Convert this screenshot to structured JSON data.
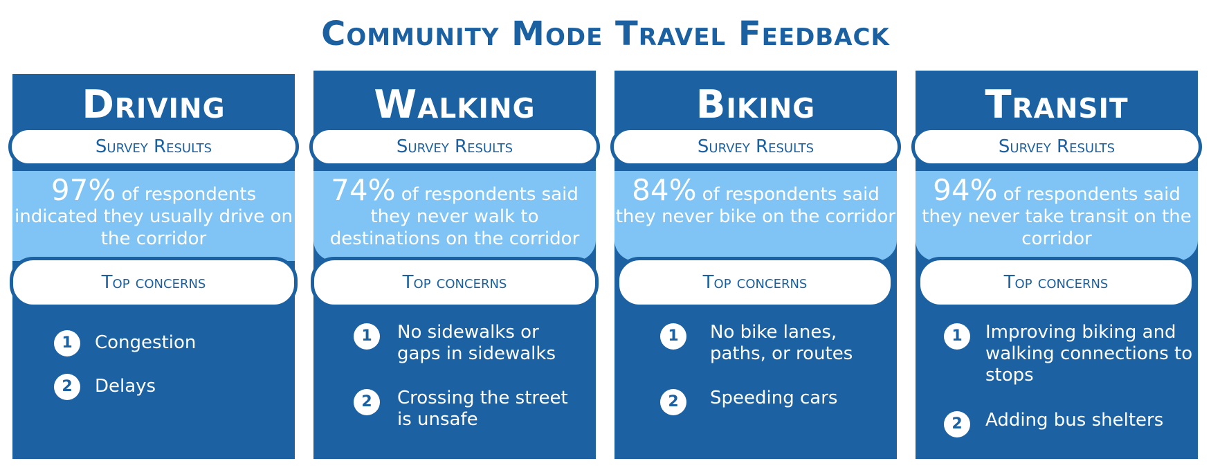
{
  "title": "Community Mode Travel Feedback",
  "panels": [
    {
      "title": "Driving",
      "survey_label": "Survey Results",
      "stat_pct": "97%",
      "stat_text": "of respondents indicated they usually drive on the corridor",
      "concerns_label": "Top concerns",
      "concerns": [
        {
          "num": "1",
          "text": "Congestion"
        },
        {
          "num": "2",
          "text": "Delays"
        }
      ]
    },
    {
      "title": "Walking",
      "survey_label": "Survey Results",
      "stat_pct": "74%",
      "stat_text": "of respondents said they never walk to destinations on the corridor",
      "concerns_label": "Top concerns",
      "concerns": [
        {
          "num": "1",
          "text": "No sidewalks or gaps in sidewalks"
        },
        {
          "num": "2",
          "text": "Crossing the street is unsafe"
        }
      ]
    },
    {
      "title": "Biking",
      "survey_label": "Survey Results",
      "stat_pct": "84%",
      "stat_text": "of respondents said they never bike on the corridor",
      "concerns_label": "Top concerns",
      "concerns": [
        {
          "num": "1",
          "text": "No bike lanes, paths, or routes"
        },
        {
          "num": "2",
          "text": "Speeding cars"
        }
      ]
    },
    {
      "title": "Transit",
      "survey_label": "Survey Results",
      "stat_pct": "94%",
      "stat_text": "of respondents said they never take transit on the corridor",
      "concerns_label": "Top concerns",
      "concerns": [
        {
          "num": "1",
          "text": "Improving biking and walking connections to stops"
        },
        {
          "num": "2",
          "text": "Adding bus shelters"
        }
      ]
    }
  ],
  "colors": {
    "panel": "#1c61a1",
    "band": "#80c4f5",
    "title": "#1b60a0"
  }
}
